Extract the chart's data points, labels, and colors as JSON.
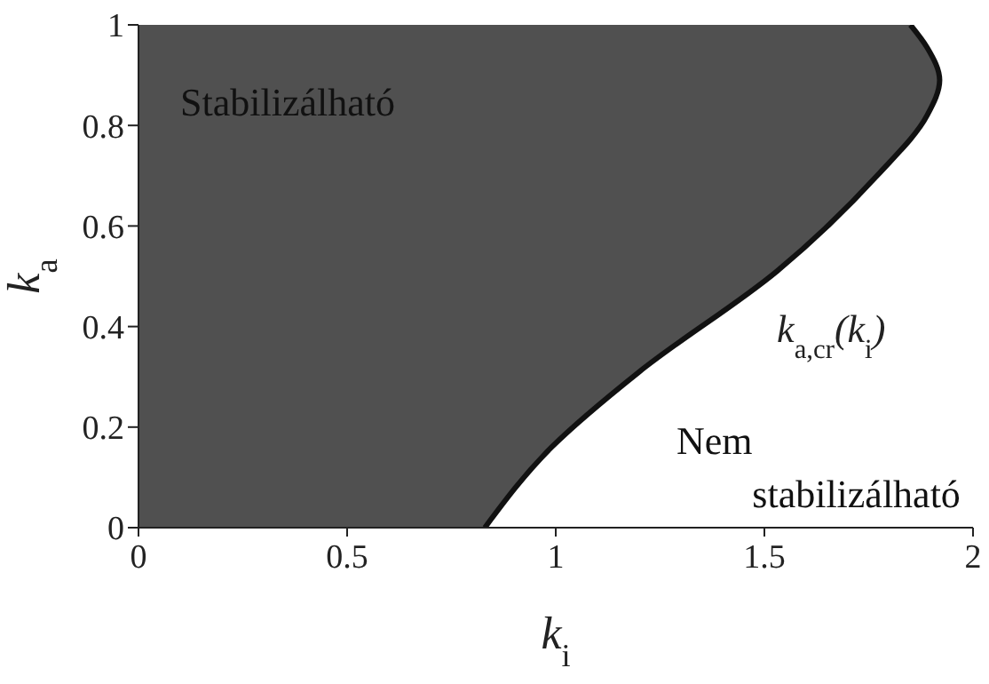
{
  "chart_data": {
    "type": "area",
    "orientation": "horizontal",
    "xlabel": "k$_{i}$",
    "ylabel": "k$_{a}$",
    "x": [
      0,
      0.16,
      0.31,
      0.51,
      0.7,
      0.82,
      0.89,
      0.955,
      1
    ],
    "series": [
      {
        "color": "#505050",
        "values": [
          0.83,
          0.99,
          1.2,
          1.53,
          1.77,
          1.89,
          1.92,
          1.89,
          1.85
        ]
      }
    ],
    "xlim": [
      0,
      2
    ],
    "xticks": [
      0,
      0.5,
      1,
      1.5,
      2
    ],
    "ylim": [
      0,
      1
    ],
    "yticks": [
      0,
      0.2,
      0.4,
      0.6,
      0.8,
      1
    ],
    "annotations": [
      "Stabilizálható",
      "Nem stabilizálható",
      "k$_{a,cr}$(k$_{i}$)"
    ],
    "grid": false,
    "legend": false
  }
}
